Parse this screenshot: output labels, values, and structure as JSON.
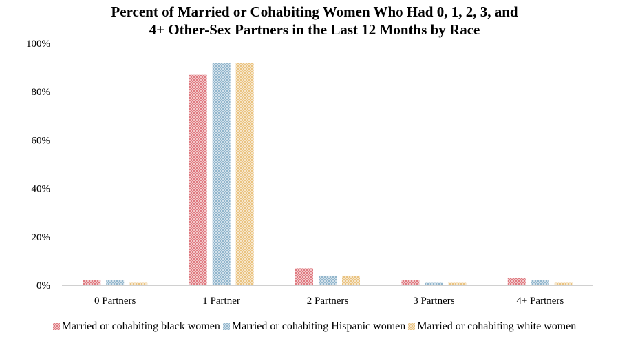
{
  "chart_data": {
    "type": "bar",
    "title_line1": "Percent of Married or Cohabiting Women Who Had 0, 1, 2, 3, and",
    "title_line2": "4+ Other-Sex Partners in the Last 12 Months by Race",
    "categories": [
      "0 Partners",
      "1 Partner",
      "2 Partners",
      "3 Partners",
      "4+ Partners"
    ],
    "y_ticks": [
      "0%",
      "20%",
      "40%",
      "60%",
      "80%",
      "100%"
    ],
    "ylim": [
      0,
      100
    ],
    "grid": false,
    "legend_position": "bottom",
    "series": [
      {
        "name": "Married or cohabiting black women",
        "color": "#d9626a",
        "values": [
          2,
          87,
          7,
          2,
          3
        ]
      },
      {
        "name": "Married or cohabiting Hispanic women",
        "color": "#7fa9c4",
        "values": [
          2,
          92,
          4,
          1,
          2
        ]
      },
      {
        "name": "Married or cohabiting white women",
        "color": "#e6b86a",
        "values": [
          1,
          92,
          4,
          1,
          1
        ]
      }
    ]
  }
}
